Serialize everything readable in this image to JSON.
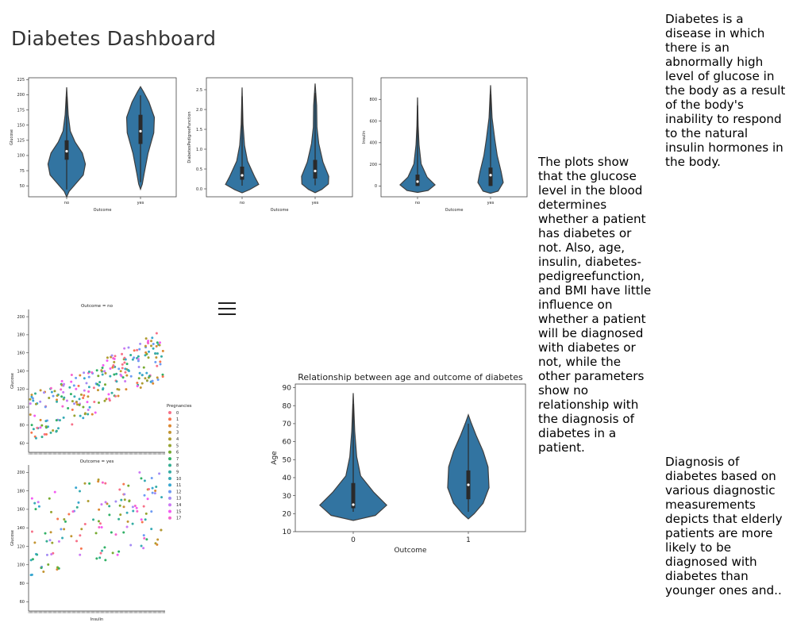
{
  "header": {
    "title": "Diabetes Dashboard"
  },
  "texts": {
    "definition": "Diabetes is a disease in which there is an abnormally high level of glucose in the body as a result of the body's inability to respond to the natural insulin hormones in the body.",
    "plots_summary": "The plots show that the glucose level in the blood determines whether a patient has diabetes or not. Also, age, insulin, diabetes-pedigreefunction, and BMI have little influence on whether a patient will be diagnosed with diabetes or not, while the other parameters show no relationship with the diagnosis of diabetes in a patient.",
    "diagnosis": "Diagnosis of diabetes based on various diagnostic measurements depicts that elderly patients are more likely to be diagnosed with diabetes than younger ones and.."
  },
  "menu": {
    "icon": "hamburger-menu-icon"
  },
  "colors": {
    "violin": "#3274a1",
    "edge": "#3f3f3f",
    "box": "#2a2a2a"
  },
  "chart_data": [
    {
      "type": "violin",
      "categories": [
        "no",
        "yes"
      ],
      "xlabel": "Outcome",
      "ylabel": "Glucose",
      "yticks": [
        50,
        75,
        100,
        125,
        150,
        175,
        200,
        225
      ],
      "ylim": [
        32,
        228
      ],
      "median": [
        107,
        140
      ],
      "q1": [
        93,
        119
      ],
      "q3": [
        125,
        167
      ],
      "range": [
        [
          44,
          197
        ],
        [
          56,
          199
        ]
      ]
    },
    {
      "type": "violin",
      "categories": [
        "no",
        "yes"
      ],
      "xlabel": "Outcome",
      "ylabel": "DiabetesPedigreeFunction",
      "yticks": [
        "0.0",
        "0.5",
        "1.0",
        "1.5",
        "2.0",
        "2.5"
      ],
      "ylim": [
        -0.2,
        2.8
      ],
      "median": [
        0.34,
        0.45
      ],
      "q1": [
        0.23,
        0.26
      ],
      "q3": [
        0.56,
        0.73
      ],
      "range": [
        [
          0.08,
          2.33
        ],
        [
          0.09,
          2.42
        ]
      ]
    },
    {
      "type": "violin",
      "categories": [
        "no",
        "yes"
      ],
      "xlabel": "Outcome",
      "ylabel": "Insulin",
      "yticks": [
        0,
        200,
        400,
        600,
        800
      ],
      "ylim": [
        -100,
        1000
      ],
      "median": [
        40,
        100
      ],
      "q1": [
        0,
        0
      ],
      "q3": [
        105,
        170
      ],
      "range": [
        [
          0,
          744
        ],
        [
          0,
          846
        ]
      ]
    },
    {
      "type": "scatter",
      "title": "Outcome = no",
      "xlabel": "",
      "ylabel": "Glucose",
      "yticks": [
        60,
        80,
        100,
        120,
        140,
        160,
        180,
        200
      ],
      "ylim": [
        50,
        208
      ],
      "point_count": 260
    },
    {
      "type": "scatter",
      "title": "Outcome = yes",
      "xlabel": "Insulin",
      "ylabel": "Glucose",
      "yticks": [
        60,
        80,
        100,
        120,
        140,
        160,
        180,
        200
      ],
      "ylim": [
        50,
        208
      ],
      "point_count": 140
    },
    {
      "type": "legend",
      "title": "Pregnancies",
      "entries": [
        "0",
        "1",
        "2",
        "3",
        "4",
        "5",
        "6",
        "7",
        "8",
        "9",
        "10",
        "11",
        "12",
        "13",
        "14",
        "15",
        "17"
      ],
      "colors": [
        "#f77189",
        "#f7754f",
        "#dc8932",
        "#c39532",
        "#ae9d31",
        "#97a431",
        "#77ab31",
        "#32b166",
        "#34ae91",
        "#36ada4",
        "#37abb5",
        "#39a7d0",
        "#6e9bf4",
        "#a48cf4",
        "#cc7af4",
        "#f45cf2",
        "#f565cc"
      ]
    },
    {
      "type": "violin",
      "title": "Relationship between age and outcome of diabetes",
      "categories": [
        "0",
        "1"
      ],
      "xlabel": "Outcome",
      "ylabel": "Age",
      "yticks": [
        10,
        20,
        30,
        40,
        50,
        60,
        70,
        80,
        90
      ],
      "ylim": [
        10,
        92
      ],
      "median": [
        25,
        36
      ],
      "q1": [
        23,
        28
      ],
      "q3": [
        37,
        44
      ],
      "range": [
        [
          21,
          81
        ],
        [
          21,
          70
        ]
      ]
    }
  ]
}
